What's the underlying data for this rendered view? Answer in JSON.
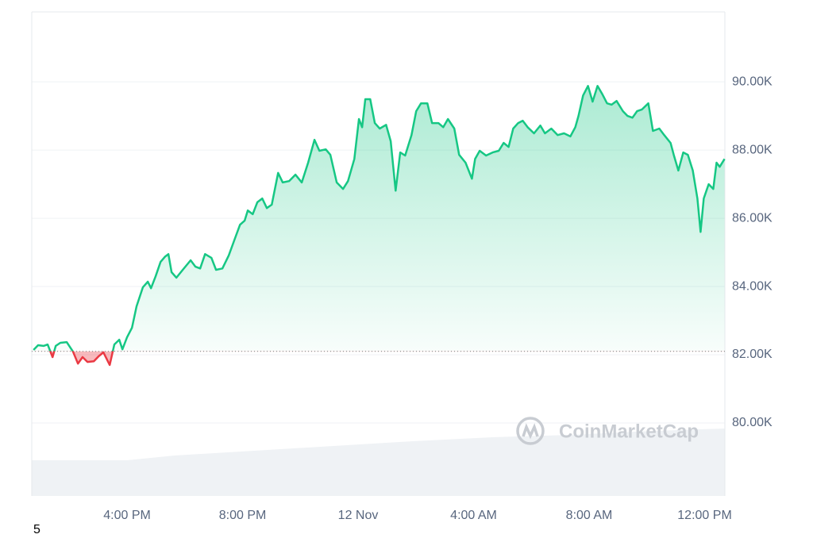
{
  "chart_data": {
    "type": "line",
    "x": [
      12.76,
      12.92,
      13.11,
      13.25,
      13.42,
      13.53,
      13.69,
      13.91,
      14.13,
      14.3,
      14.46,
      14.63,
      14.85,
      15.01,
      15.18,
      15.4,
      15.56,
      15.73,
      15.84,
      16.0,
      16.17,
      16.33,
      16.55,
      16.72,
      16.83,
      16.99,
      17.16,
      17.32,
      17.43,
      17.54,
      17.71,
      17.93,
      18.2,
      18.37,
      18.53,
      18.7,
      18.92,
      19.08,
      19.3,
      19.52,
      19.74,
      19.91,
      20.07,
      20.18,
      20.35,
      20.51,
      20.68,
      20.84,
      21.01,
      21.23,
      21.39,
      21.61,
      21.83,
      22.05,
      22.27,
      22.49,
      22.66,
      22.88,
      23.04,
      23.26,
      23.48,
      23.65,
      23.87,
      24.03,
      24.14,
      24.25,
      24.42,
      24.58,
      24.75,
      24.97,
      25.13,
      25.3,
      25.46,
      25.63,
      25.85,
      26.01,
      26.18,
      26.4,
      26.56,
      26.78,
      26.95,
      27.11,
      27.33,
      27.5,
      27.72,
      27.94,
      28.05,
      28.21,
      28.43,
      28.66,
      28.87,
      29.04,
      29.21,
      29.37,
      29.54,
      29.7,
      29.87,
      30.09,
      30.31,
      30.47,
      30.69,
      30.91,
      31.13,
      31.35,
      31.52,
      31.63,
      31.79,
      31.96,
      32.12,
      32.29,
      32.45,
      32.62,
      32.78,
      32.95,
      33.17,
      33.33,
      33.5,
      33.66,
      33.83,
      34.05,
      34.21,
      34.43,
      34.6,
      34.82,
      34.93,
      35.09,
      35.26,
      35.42,
      35.59,
      35.75,
      35.86,
      35.97,
      36.14,
      36.3,
      36.41,
      36.52,
      36.69
    ],
    "values": [
      82140,
      82280,
      82260,
      82300,
      81930,
      82260,
      82350,
      82370,
      82090,
      81740,
      81930,
      81790,
      81810,
      81950,
      82070,
      81700,
      82300,
      82440,
      82160,
      82510,
      82790,
      83420,
      83980,
      84140,
      83950,
      84300,
      84720,
      84880,
      84950,
      84420,
      84260,
      84490,
      84770,
      84580,
      84530,
      84950,
      84840,
      84490,
      84530,
      84910,
      85420,
      85810,
      85930,
      86230,
      86120,
      86470,
      86580,
      86300,
      86400,
      87330,
      87050,
      87090,
      87280,
      87050,
      87630,
      88300,
      87980,
      88020,
      87860,
      87050,
      86860,
      87090,
      87740,
      88910,
      88670,
      89490,
      89490,
      88790,
      88630,
      88740,
      88260,
      86810,
      87930,
      87840,
      88440,
      89140,
      89370,
      89370,
      88790,
      88790,
      88670,
      88910,
      88630,
      87860,
      87630,
      87160,
      87740,
      87980,
      87840,
      87930,
      87980,
      88210,
      88090,
      88630,
      88790,
      88860,
      88670,
      88490,
      88720,
      88490,
      88630,
      88440,
      88490,
      88400,
      88670,
      89000,
      89600,
      89880,
      89420,
      89880,
      89650,
      89370,
      89330,
      89440,
      89140,
      89000,
      88950,
      89140,
      89190,
      89370,
      88560,
      88630,
      88440,
      88210,
      87860,
      87400,
      87930,
      87860,
      87400,
      86580,
      85600,
      86580,
      87000,
      86860,
      87630,
      87510,
      87740
    ],
    "color": "#16c784",
    "negative_color": "#ea3943",
    "baseline": 82100,
    "xlim": [
      12.7,
      36.7
    ],
    "xticks": [
      {
        "value": 16,
        "label": "4:00 PM"
      },
      {
        "value": 20,
        "label": "8:00 PM"
      },
      {
        "value": 24,
        "label": "12 Nov"
      },
      {
        "value": 28,
        "label": "4:00 AM"
      },
      {
        "value": 32,
        "label": "8:00 AM"
      },
      {
        "value": 36,
        "label": "12:00 PM"
      }
    ],
    "ylim": [
      77860,
      92050
    ],
    "yticks": [
      {
        "value": 80000,
        "label": "80.00K"
      },
      {
        "value": 82000,
        "label": "82.00K"
      },
      {
        "value": 84000,
        "label": "84.00K"
      },
      {
        "value": 86000,
        "label": "86.00K"
      },
      {
        "value": 88000,
        "label": "88.00K"
      },
      {
        "value": 90000,
        "label": "90.00K"
      }
    ],
    "grid": true,
    "watermark": "CoinMarketCap",
    "footer_text": "5"
  }
}
